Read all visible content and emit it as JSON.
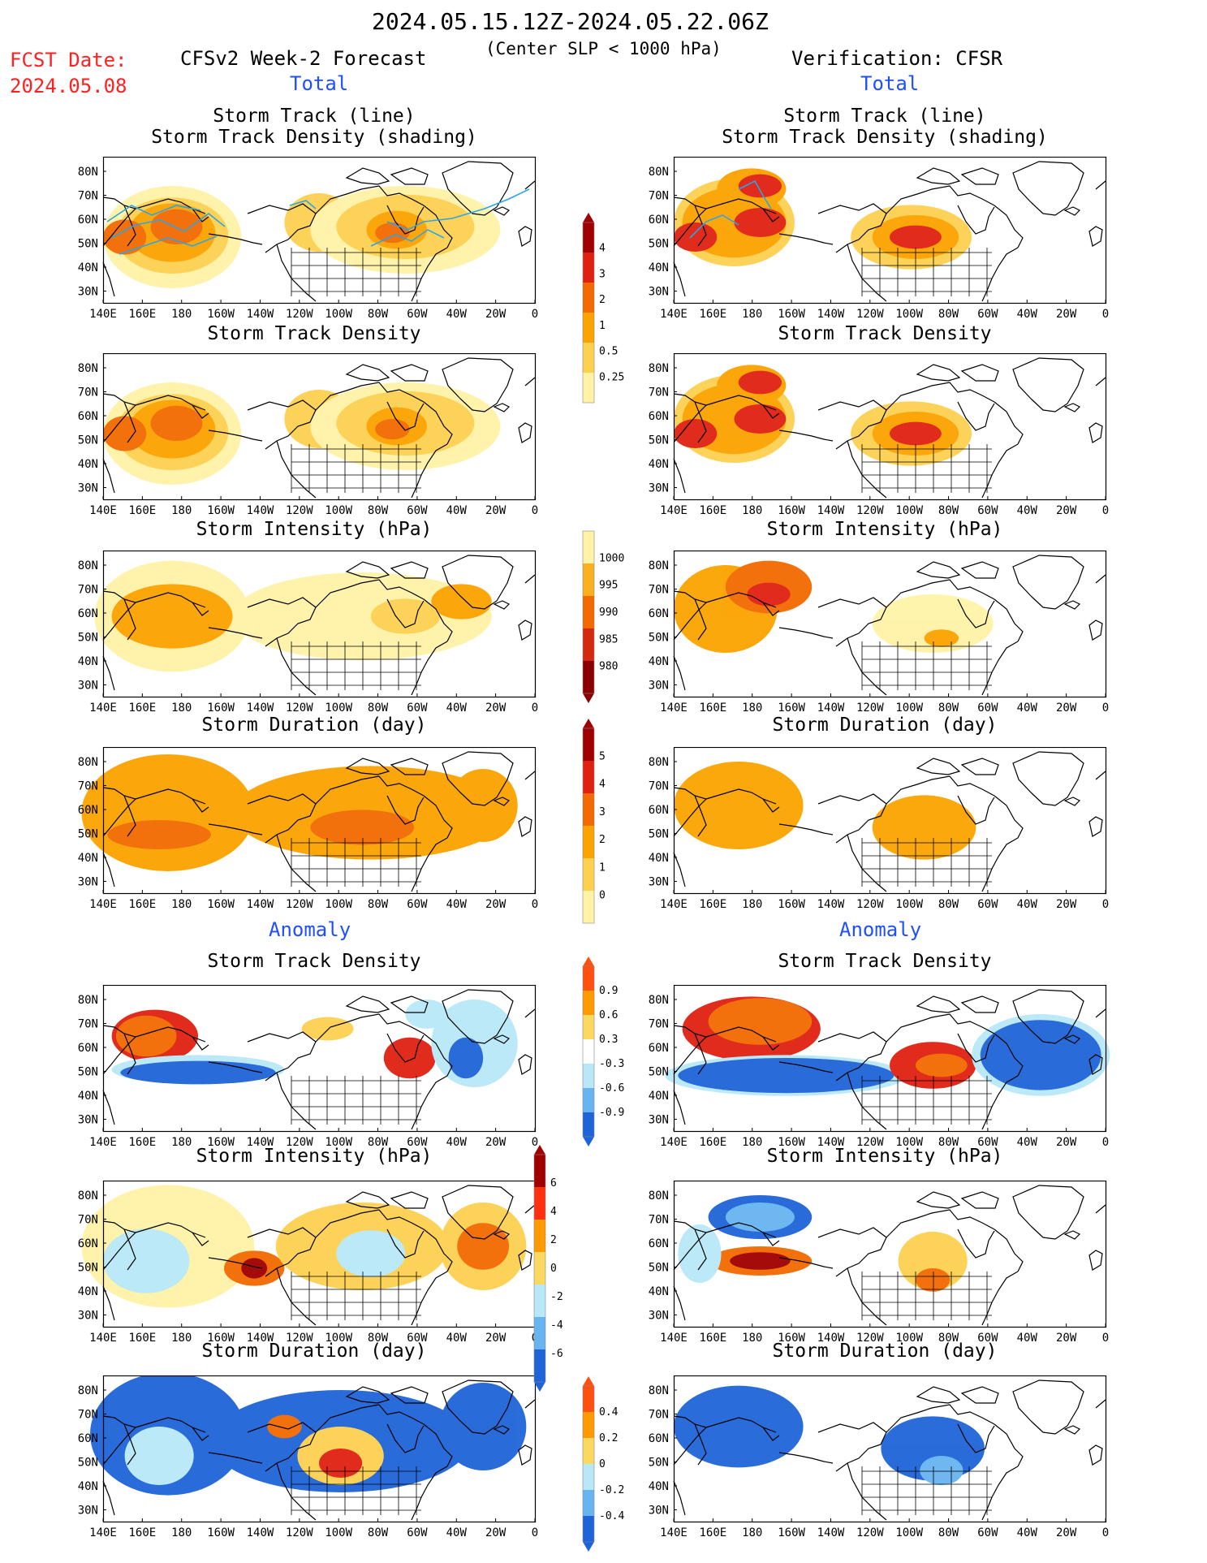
{
  "header": {
    "period": "2024.05.15.12Z-2024.05.22.06Z",
    "fcst_label": "FCST Date:",
    "fcst_date": "2024.05.08",
    "left_title": "CFSv2 Week-2 Forecast",
    "center_note": "(Center SLP < 1000 hPa)",
    "right_title": "Verification: CFSR",
    "total_label": "Total",
    "anomaly_label": "Anomaly"
  },
  "panel_titles": {
    "track_line": "Storm Track (line)",
    "track_density_shading": "Storm Track Density (shading)",
    "track_density": "Storm Track Density",
    "intensity": "Storm Intensity (hPa)",
    "duration": "Storm Duration (day)"
  },
  "axes": {
    "lon_labels": [
      "140E",
      "160E",
      "180",
      "160W",
      "140W",
      "120W",
      "100W",
      "80W",
      "60W",
      "40W",
      "20W",
      "0"
    ],
    "lat_labels": [
      "80N",
      "70N",
      "60N",
      "50N",
      "40N",
      "30N"
    ]
  },
  "colorbars": {
    "total_density": {
      "labels": [
        "4",
        "3",
        "2",
        "1",
        "0.5",
        "0.25"
      ],
      "colors": [
        "#a00000",
        "#e02010",
        "#f26a00",
        "#fba300",
        "#fdd050",
        "#fff3a8"
      ]
    },
    "total_intensity": {
      "labels": [
        "1000",
        "995",
        "990",
        "985",
        "980"
      ],
      "colors": [
        "#fff3a8",
        "#fbb020",
        "#f26a00",
        "#d42810",
        "#8a0000"
      ]
    },
    "total_duration": {
      "labels": [
        "5",
        "4",
        "3",
        "2",
        "1",
        "0"
      ],
      "colors": [
        "#a00000",
        "#e02010",
        "#f26a00",
        "#fba300",
        "#fdd050",
        "#fff3a8"
      ]
    },
    "anom_density": {
      "labels": [
        "0.9",
        "0.6",
        "0.3",
        "-0.3",
        "-0.6",
        "-0.9"
      ],
      "colors": [
        "#ff5010",
        "#ff9a00",
        "#fbd860",
        "#ffffff",
        "#b8e8f8",
        "#68b4f0",
        "#1e64d8"
      ]
    },
    "anom_intensity": {
      "labels": [
        "6",
        "4",
        "2",
        "0",
        "-2",
        "-4",
        "-6"
      ],
      "colors": [
        "#a00000",
        "#ff3010",
        "#ff9a00",
        "#fbd860",
        "#b8e8f8",
        "#68b4f0",
        "#1e64d8"
      ]
    },
    "anom_duration": {
      "labels": [
        "0.4",
        "0.2",
        "0",
        "-0.2",
        "-0.4"
      ],
      "colors": [
        "#ff5010",
        "#ff9a00",
        "#fbd860",
        "#b8e8f8",
        "#68b4f0",
        "#1e64d8"
      ]
    }
  },
  "colors": {
    "lightyellow": "#fff3a8",
    "yellow": "#fdd050",
    "orange": "#fba300",
    "darkorange": "#f26a00",
    "red": "#e02010",
    "darkred": "#a00000",
    "lightblue": "#b8e8f8",
    "midblue": "#68b4f0",
    "blue": "#1e64d8",
    "track": "#2aa6e8"
  }
}
